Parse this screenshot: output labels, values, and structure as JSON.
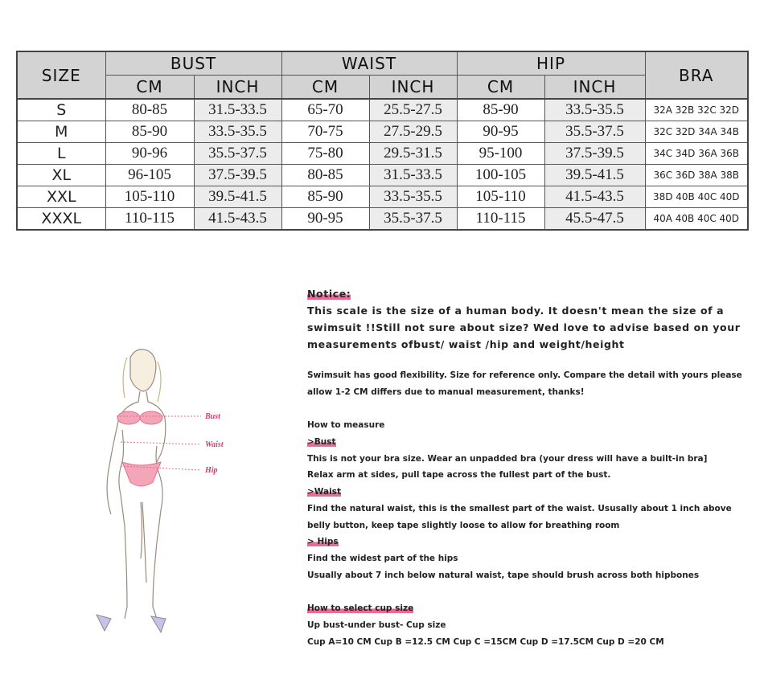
{
  "table": {
    "headers": {
      "size": "SIZE",
      "bust": "BUST",
      "waist": "WAIST",
      "hip": "HIP",
      "bra": "BRA",
      "cm": "CM",
      "inch": "INCH"
    },
    "rows": [
      {
        "size": "S",
        "bust_cm": "80-85",
        "bust_in": "31.5-33.5",
        "waist_cm": "65-70",
        "waist_in": "25.5-27.5",
        "hip_cm": "85-90",
        "hip_in": "33.5-35.5",
        "bra": "32A 32B 32C 32D"
      },
      {
        "size": "M",
        "bust_cm": "85-90",
        "bust_in": "33.5-35.5",
        "waist_cm": "70-75",
        "waist_in": "27.5-29.5",
        "hip_cm": "90-95",
        "hip_in": "35.5-37.5",
        "bra": "32C 32D 34A 34B"
      },
      {
        "size": "L",
        "bust_cm": "90-96",
        "bust_in": "35.5-37.5",
        "waist_cm": "75-80",
        "waist_in": "29.5-31.5",
        "hip_cm": "95-100",
        "hip_in": "37.5-39.5",
        "bra": "34C 34D 36A 36B"
      },
      {
        "size": "XL",
        "bust_cm": "96-105",
        "bust_in": "37.5-39.5",
        "waist_cm": "80-85",
        "waist_in": "31.5-33.5",
        "hip_cm": "100-105",
        "hip_in": "39.5-41.5",
        "bra": "36C 36D 38A 38B"
      },
      {
        "size": "XXL",
        "bust_cm": "105-110",
        "bust_in": "39.5-41.5",
        "waist_cm": "85-90",
        "waist_in": "33.5-35.5",
        "hip_cm": "105-110",
        "hip_in": "41.5-43.5",
        "bra": "38D 40B 40C 40D"
      },
      {
        "size": "XXXL",
        "bust_cm": "110-115",
        "bust_in": "41.5-43.5",
        "waist_cm": "90-95",
        "waist_in": "35.5-37.5",
        "hip_cm": "110-115",
        "hip_in": "45.5-47.5",
        "bra": "40A 40B 40C 40D"
      }
    ]
  },
  "figure": {
    "labels": [
      "Bust",
      "Waist",
      "Hip"
    ],
    "accent": "#e86a95"
  },
  "notes": {
    "notice_title": "Notice:",
    "notice_lines": [
      "This scale is the size of a human body. It doesn't mean the size of a",
      "swimsuit !!Still not sure about size? Wed love to advise based on your",
      "measurements ofbust/ waist /hip and weight/height"
    ],
    "flex_lines": [
      "Swimsuit has good flexibility. Size for reference only. Compare the detail with yours please",
      "allow 1-2 CM differs due to manual measurement, thanks!"
    ],
    "how_title": "How to measure",
    "bust_title": ">Bust",
    "bust_lines": [
      "This is not your bra size. Wear an unpadded bra (your dress will have a built-in bra]",
      "Relax arm at sides, pull tape across the fullest part of the bust."
    ],
    "waist_title": ">Waist",
    "waist_lines": [
      "Find the natural waist, this is the smallest part of the waist. Ususally about 1 inch above",
      "belly button, keep tape slightly loose to allow for breathing room"
    ],
    "hips_title": "> Hips",
    "hips_lines": [
      "Find the widest part of the hips",
      "Usually about 7 inch below natural waist, tape should brush across both hipbones"
    ],
    "cup_title": "How to select cup size",
    "cup_lines": [
      "Up bust-under bust- Cup size",
      "Cup A=10 CM Cup B =12.5 CM Cup C =15CM Cup D =17.5CM Cup D =20 CM"
    ]
  }
}
